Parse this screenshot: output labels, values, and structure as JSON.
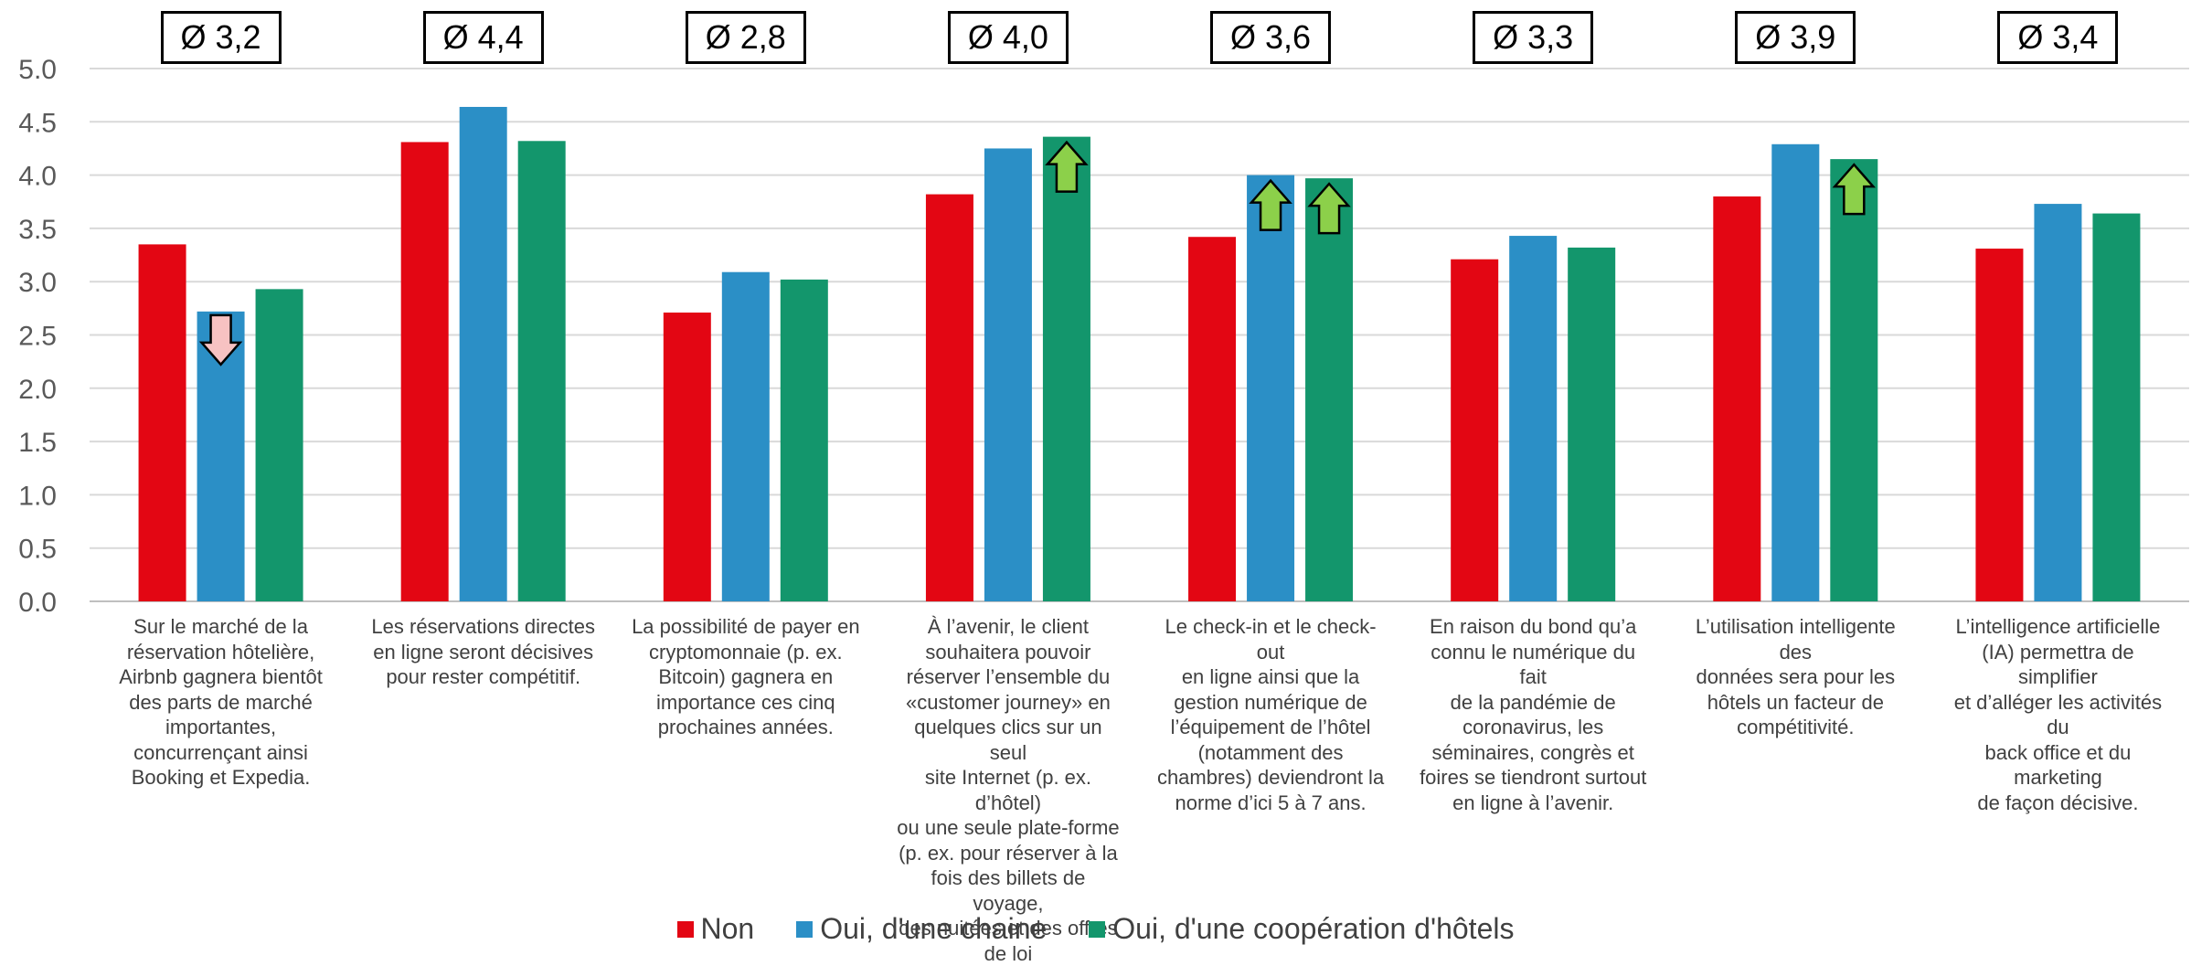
{
  "chart_data": {
    "type": "bar",
    "title": "",
    "xlabel": "",
    "ylabel": "",
    "ylim": [
      0,
      5
    ],
    "yticks": [
      "0.0",
      "0.5",
      "1.0",
      "1.5",
      "2.0",
      "2.5",
      "3.0",
      "3.5",
      "4.0",
      "4.5",
      "5.0"
    ],
    "grid": true,
    "legend_position": "bottom",
    "categories": [
      "Sur le marché de la\nréservation hôtelière,\nAirbnb gagnera bientôt\ndes parts de marché\nimportantes,\nconcurrençant ainsi\nBooking et Expedia.",
      "Les réservations directes\nen ligne seront décisives\npour rester compétitif.",
      "La possibilité de payer en\ncryptomonnaie (p. ex.\nBitcoin) gagnera en\nimportance ces cinq\nprochaines années.",
      "À l’avenir, le client\nsouhaitera pouvoir\nréserver l’ensemble du\n«customer journey» en\nquelques clics sur un seul\nsite Internet (p. ex. d’hôtel)\nou une seule plate-forme\n(p. ex. pour réserver à la\nfois des billets de voyage,\ndes nuitées et des offres\nde loi",
      "Le check-in et le check-out\nen ligne ainsi que la\ngestion numérique de\nl’équipement de l’hôtel\n(notamment des\nchambres) deviendront la\nnorme d’ici 5 à 7 ans.",
      "En raison du bond qu’a\nconnu le numérique du fait\nde la pandémie de\ncoronavirus, les\nséminaires, congrès et\nfoires se tiendront surtout\nen ligne à l’avenir.",
      "L’utilisation intelligente des\ndonnées sera pour les\nhôtels un facteur de\ncompétitivité.",
      "L’intelligence artificielle\n(IA) permettra de simplifier\net d’alléger les activités du\nback office et du marketing\nde façon décisive."
    ],
    "averages": [
      "Ø 3,2",
      "Ø 4,4",
      "Ø 2,8",
      "Ø 4,0",
      "Ø 3,6",
      "Ø 3,3",
      "Ø 3,9",
      "Ø 3,4"
    ],
    "series": [
      {
        "name": "Non",
        "color": "#E30613",
        "values": [
          3.35,
          4.31,
          2.71,
          3.82,
          3.42,
          3.21,
          3.8,
          3.31
        ]
      },
      {
        "name": "Oui, d'une chaine",
        "color": "#2B8FC6",
        "values": [
          2.72,
          4.64,
          3.09,
          4.25,
          4.0,
          3.43,
          4.29,
          3.73
        ]
      },
      {
        "name": "Oui, d'une coopération d'hôtels",
        "color": "#13966C",
        "values": [
          2.93,
          4.32,
          3.02,
          4.36,
          3.97,
          3.32,
          4.15,
          3.64
        ]
      }
    ],
    "annotations": [
      {
        "category_index": 0,
        "series_index": 1,
        "direction": "down",
        "color": "#F7C2C2"
      },
      {
        "category_index": 3,
        "series_index": 2,
        "direction": "up",
        "color": "#8CD04A"
      },
      {
        "category_index": 4,
        "series_index": 1,
        "direction": "up",
        "color": "#8CD04A"
      },
      {
        "category_index": 4,
        "series_index": 2,
        "direction": "up",
        "color": "#8CD04A"
      },
      {
        "category_index": 6,
        "series_index": 2,
        "direction": "up",
        "color": "#8CD04A"
      }
    ],
    "colors": {
      "grid": "#D9D9D9",
      "axis_text": "#595959",
      "label_text": "#404040"
    }
  }
}
